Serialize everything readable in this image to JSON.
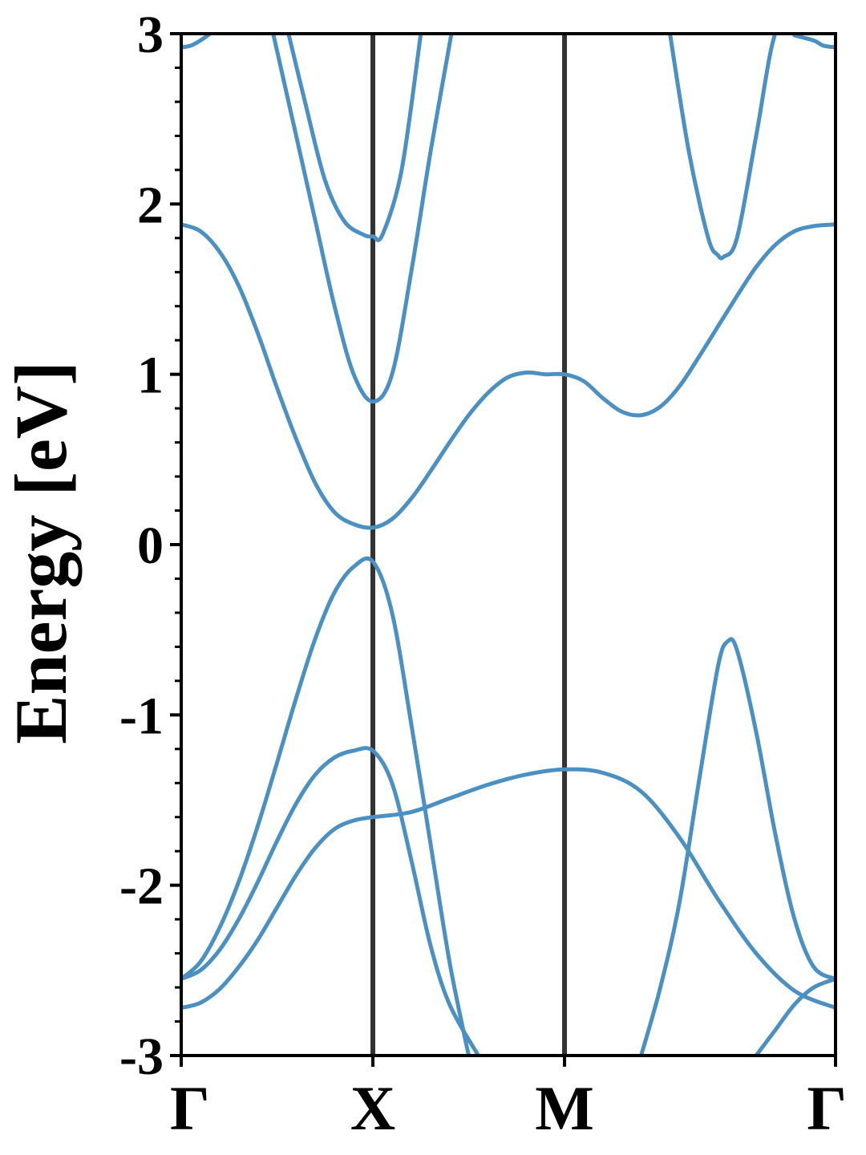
{
  "chart_data": {
    "type": "line",
    "title": "",
    "xlabel": "",
    "ylabel": "Energy [eV]",
    "ylim": [
      -3,
      3
    ],
    "y_ticks": [
      3,
      2,
      1,
      0,
      -1,
      -2,
      -3
    ],
    "y_tick_labels": [
      "3",
      "2",
      "1",
      "0",
      "-1",
      "-2",
      "-3"
    ],
    "y_minor_step": 0.2,
    "k_points": [
      {
        "label": "Γ",
        "x": 0.0
      },
      {
        "label": "X",
        "x": 1.0
      },
      {
        "label": "M",
        "x": 2.0
      },
      {
        "label": "Γ",
        "x": 3.414
      }
    ],
    "grid": false,
    "line_color": "#4a90c2",
    "divider_color": "#333333",
    "series": [
      {
        "x": [
          0,
          0.1,
          0.2,
          0.3,
          0.4,
          0.5,
          0.6,
          0.7,
          0.8,
          0.9,
          1.0,
          1.1,
          1.2,
          1.3,
          1.4,
          1.5,
          1.6,
          1.7,
          1.8,
          1.9,
          2.0,
          2.1,
          2.2,
          2.3,
          2.4,
          2.5,
          2.6,
          2.7,
          2.8,
          2.9,
          3.0,
          3.1,
          3.2,
          3.3,
          3.414
        ],
        "y": [
          1.88,
          1.84,
          1.72,
          1.52,
          1.24,
          0.92,
          0.62,
          0.36,
          0.19,
          0.12,
          0.1,
          0.15,
          0.27,
          0.43,
          0.6,
          0.76,
          0.89,
          0.98,
          1.01,
          1.0,
          1.0,
          0.96,
          0.86,
          0.78,
          0.76,
          0.81,
          0.93,
          1.1,
          1.28,
          1.46,
          1.63,
          1.76,
          1.84,
          1.87,
          1.88
        ]
      },
      {
        "x": [
          0.56,
          0.65,
          0.75,
          0.85,
          0.95,
          1.0,
          1.05,
          1.15,
          1.25
        ],
        "y": [
          3.0,
          2.58,
          2.14,
          1.9,
          1.82,
          1.81,
          1.82,
          2.2,
          3.0
        ]
      },
      {
        "x": [
          0.48,
          0.6,
          0.7,
          0.8,
          0.9,
          1.0,
          1.1,
          1.2,
          1.3,
          1.41
        ],
        "y": [
          3.0,
          2.4,
          1.9,
          1.4,
          1.0,
          0.84,
          1.0,
          1.6,
          2.3,
          3.0
        ]
      },
      {
        "x": [
          2.55,
          2.65,
          2.75,
          2.8,
          2.83,
          2.9,
          3.0,
          3.1,
          3.2
        ],
        "y": [
          3.0,
          2.3,
          1.8,
          1.7,
          1.69,
          1.8,
          2.4,
          3.0,
          3.0
        ]
      },
      {
        "x": [
          3.2,
          3.3,
          3.35,
          3.414
        ],
        "y": [
          2.99,
          2.96,
          2.93,
          2.92
        ]
      },
      {
        "x": [
          0,
          0.05,
          0.1,
          0.15
        ],
        "y": [
          2.92,
          2.93,
          2.96,
          3.0
        ]
      },
      {
        "x": [
          0,
          0.1,
          0.2,
          0.3,
          0.4,
          0.5,
          0.6,
          0.7,
          0.8,
          0.9,
          1.0,
          1.1,
          1.2,
          1.3,
          1.4,
          1.5
        ],
        "y": [
          -2.55,
          -2.45,
          -2.25,
          -1.98,
          -1.65,
          -1.28,
          -0.9,
          -0.55,
          -0.28,
          -0.13,
          -0.1,
          -0.4,
          -1.05,
          -1.75,
          -2.45,
          -3.0
        ]
      },
      {
        "x": [
          0,
          0.1,
          0.2,
          0.3,
          0.4,
          0.5,
          0.6,
          0.7,
          0.8,
          0.9,
          1.0,
          1.1,
          1.2,
          1.3,
          1.4,
          1.55
        ],
        "y": [
          -2.55,
          -2.5,
          -2.38,
          -2.2,
          -1.98,
          -1.74,
          -1.52,
          -1.35,
          -1.25,
          -1.21,
          -1.21,
          -1.4,
          -1.85,
          -2.35,
          -2.7,
          -3.0
        ]
      },
      {
        "x": [
          0,
          0.1,
          0.2,
          0.3,
          0.4,
          0.5,
          0.6,
          0.7,
          0.8,
          0.9,
          1.0,
          1.2,
          1.4,
          1.6,
          1.8,
          2.0,
          2.2,
          2.4,
          2.6,
          2.8,
          3.0,
          3.2,
          3.414
        ],
        "y": [
          -2.72,
          -2.69,
          -2.61,
          -2.48,
          -2.32,
          -2.13,
          -1.94,
          -1.78,
          -1.67,
          -1.62,
          -1.6,
          -1.57,
          -1.49,
          -1.41,
          -1.35,
          -1.32,
          -1.34,
          -1.45,
          -1.72,
          -2.08,
          -2.4,
          -2.62,
          -2.72
        ]
      },
      {
        "x": [
          2.4,
          2.5,
          2.6,
          2.7,
          2.8,
          2.85,
          2.9,
          3.0,
          3.1,
          3.2,
          3.3,
          3.414
        ],
        "y": [
          -3.0,
          -2.6,
          -2.1,
          -1.4,
          -0.72,
          -0.57,
          -0.62,
          -1.1,
          -1.7,
          -2.2,
          -2.48,
          -2.55
        ]
      },
      {
        "x": [
          3.0,
          3.1,
          3.2,
          3.3,
          3.414
        ],
        "y": [
          -3.0,
          -2.85,
          -2.7,
          -2.6,
          -2.55
        ]
      }
    ]
  }
}
